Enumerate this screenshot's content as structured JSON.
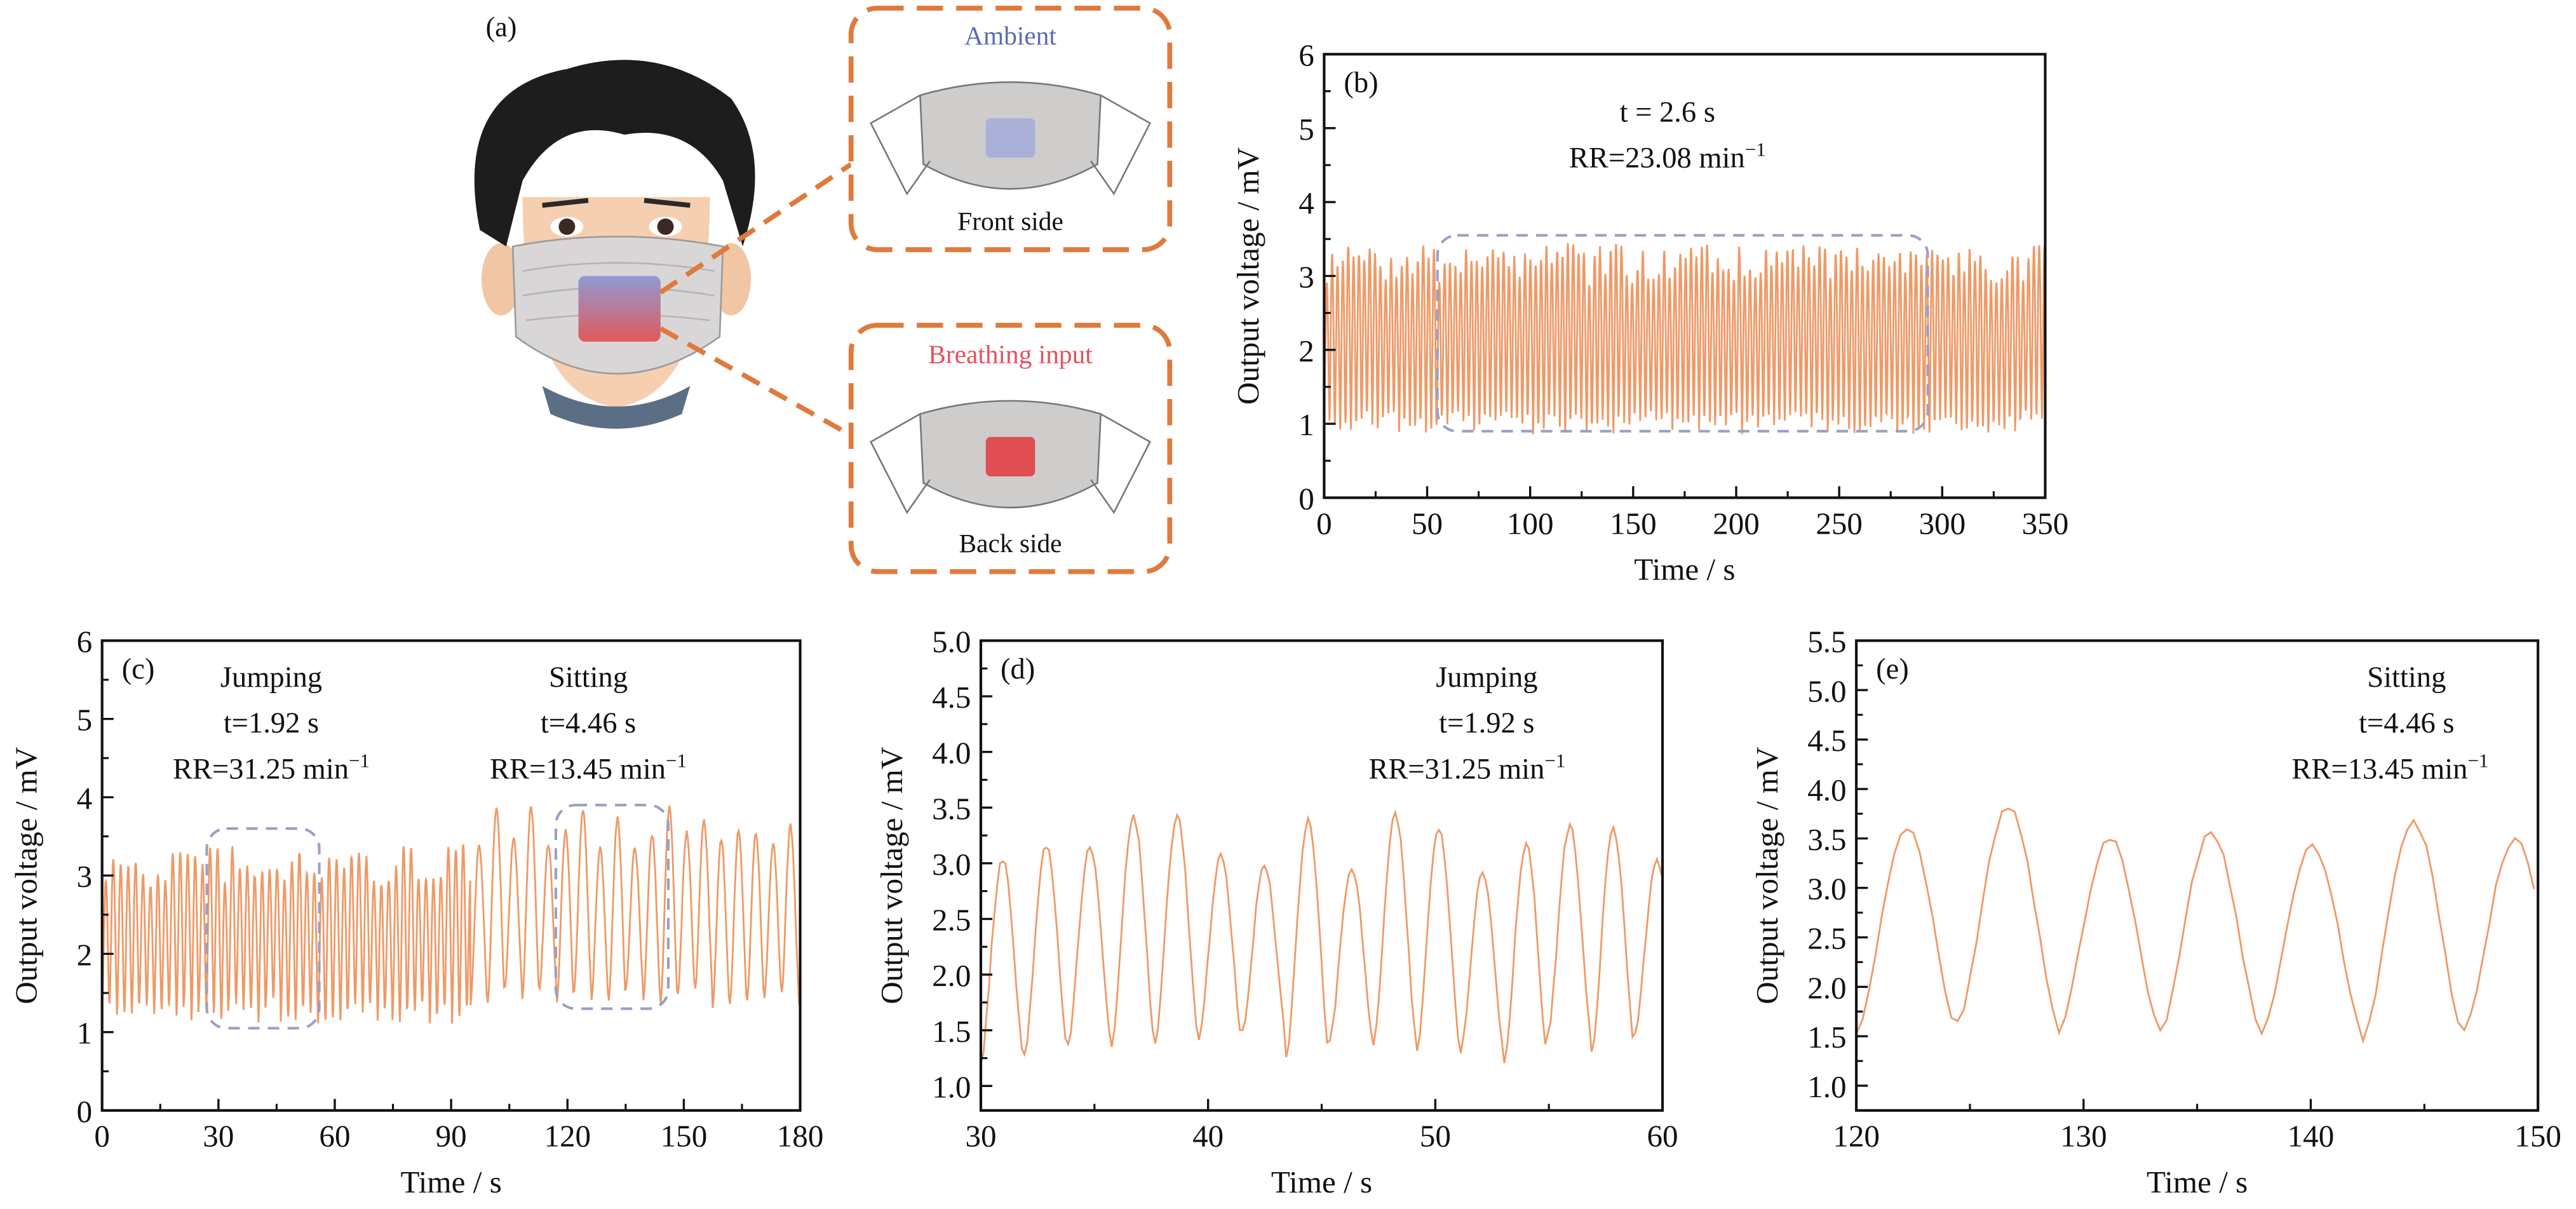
{
  "panel_a": {
    "label": "(a)",
    "front": {
      "title": "Ambient",
      "caption": "Front side",
      "title_color": "#5b6bb5",
      "patch_color": "#aab0d8"
    },
    "back": {
      "title": "Breathing input",
      "caption": "Back side",
      "title_color": "#e8505b",
      "patch_color": "#e04d52"
    },
    "callout_color": "#e07a3c"
  },
  "chart_data": [
    {
      "id": "b",
      "type": "line",
      "panel_label": "(b)",
      "xlabel": "Time / s",
      "ylabel": "Output voltage / mV",
      "xlim": [
        0,
        350
      ],
      "ylim": [
        0,
        6
      ],
      "xticks": [
        "0",
        "50",
        "100",
        "150",
        "200",
        "250",
        "300",
        "350"
      ],
      "yticks": [
        "0",
        "1",
        "2",
        "3",
        "4",
        "5",
        "6"
      ],
      "annotations": [
        {
          "text": "t = 2.6 s",
          "italic_prefix": "t"
        },
        {
          "text": "RR=23.08 min",
          "sup": "−1"
        }
      ],
      "highlight_boxes": [
        {
          "x": [
            55,
            293
          ],
          "y": [
            0.9,
            3.55
          ]
        }
      ],
      "series": [
        {
          "color": "#ee9a67",
          "segments": [
            {
              "t_start": 0,
              "t_end": 350,
              "period_s": 2.6,
              "min": 1.0,
              "max": 3.25
            }
          ]
        }
      ]
    },
    {
      "id": "c",
      "type": "line",
      "panel_label": "(c)",
      "xlabel": "Time / s",
      "ylabel": "Output voltage / mV",
      "xlim": [
        0,
        180
      ],
      "ylim": [
        0,
        6
      ],
      "xticks": [
        "0",
        "30",
        "60",
        "90",
        "120",
        "150",
        "180"
      ],
      "yticks": [
        "0",
        "1",
        "2",
        "3",
        "4",
        "5",
        "6"
      ],
      "annotations": [
        {
          "group": "Jumping",
          "t": "t=1.92 s",
          "rr": "RR=31.25 min",
          "sup": "−1"
        },
        {
          "group": "Sitting",
          "t": "t=4.46 s",
          "rr": "RR=13.45 min",
          "sup": "−1"
        }
      ],
      "highlight_boxes": [
        {
          "x": [
            27,
            56
          ],
          "y": [
            1.05,
            3.6
          ]
        },
        {
          "x": [
            117,
            146
          ],
          "y": [
            1.3,
            3.9
          ]
        }
      ],
      "series": [
        {
          "color": "#ee9a67",
          "segments": [
            {
              "t_start": 0,
              "t_end": 95,
              "period_s": 1.92,
              "min": 1.25,
              "max": 3.2
            },
            {
              "t_start": 95,
              "t_end": 180,
              "period_s": 4.46,
              "min": 1.4,
              "max": 3.7
            }
          ]
        }
      ]
    },
    {
      "id": "d",
      "type": "line",
      "panel_label": "(d)",
      "xlabel": "Time / s",
      "ylabel": "Output voltage / mV",
      "xlim": [
        30,
        60
      ],
      "ylim": [
        0.78,
        5.0
      ],
      "xticks": [
        "30",
        "40",
        "50",
        "60"
      ],
      "yticks": [
        "1.0",
        "1.5",
        "2.0",
        "2.5",
        "3.0",
        "3.5",
        "4.0",
        "4.5",
        "5.0"
      ],
      "annotations": [
        {
          "group": "Jumping",
          "t": "t=1.92 s",
          "rr": "RR=31.25 min",
          "sup": "−1"
        }
      ],
      "series": [
        {
          "color": "#ee9a67",
          "segments": [
            {
              "t_start": 30,
              "t_end": 60,
              "period_s": 1.92,
              "min": 1.3,
              "max": 3.25
            }
          ]
        }
      ]
    },
    {
      "id": "e",
      "type": "line",
      "panel_label": "(e)",
      "xlabel": "Time / s",
      "ylabel": "Output voltage / mV",
      "xlim": [
        120,
        150
      ],
      "ylim": [
        0.75,
        5.5
      ],
      "xticks": [
        "120",
        "130",
        "140",
        "150"
      ],
      "yticks": [
        "1.0",
        "1.5",
        "2.0",
        "2.5",
        "3.0",
        "3.5",
        "4.0",
        "4.5",
        "5.0",
        "5.5"
      ],
      "annotations": [
        {
          "group": "Sitting",
          "t": "t=4.46 s",
          "rr": "RR=13.45 min",
          "sup": "−1"
        }
      ],
      "series": [
        {
          "color": "#ee9a67",
          "segments": [
            {
              "t_start": 120,
              "t_end": 150,
              "period_s": 4.46,
              "min": 1.45,
              "max": 3.7
            }
          ]
        }
      ]
    }
  ]
}
